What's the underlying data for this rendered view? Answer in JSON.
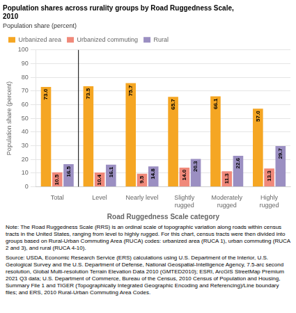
{
  "chart_data": {
    "type": "bar",
    "title": [
      "Population shares across rurality groups by Road Ruggedness Scale,",
      "2010"
    ],
    "ylabel": "Population share (percent)",
    "xlabel": "Road Ruggedness Scale category",
    "categories": [
      "Total",
      "Level",
      "Nearly level",
      "Slightly\nrugged",
      "Moderately\nrugged",
      "Highly\nrugged"
    ],
    "series": [
      {
        "name": "Urbanized area",
        "color": "#F5A623",
        "values": [
          73.0,
          73.5,
          75.7,
          65.7,
          66.1,
          57.0
        ],
        "value_labels": [
          "73.0",
          "73.5",
          "75.7",
          "65.7",
          "66.1",
          "57.0"
        ]
      },
      {
        "name": "Urbanized commuting",
        "color": "#F0897A",
        "values": [
          10.5,
          10.4,
          9.5,
          14.0,
          11.3,
          13.3
        ],
        "value_labels": [
          "10.5",
          "10.4",
          "9.5",
          "14.0",
          "11.3",
          "13.3"
        ]
      },
      {
        "name": "Rural",
        "color": "#9B8FC2",
        "values": [
          16.5,
          16.1,
          14.8,
          20.3,
          22.6,
          29.7
        ],
        "value_labels": [
          "16.5",
          "16.1",
          "14.8",
          "20.3",
          "22.6",
          "29.7"
        ]
      }
    ],
    "ylim": [
      0,
      100
    ],
    "yticks": [
      0,
      10,
      20,
      30,
      40,
      50,
      60,
      70,
      80,
      90,
      100
    ],
    "grid": true,
    "legend": "upper left",
    "data_labels": true,
    "annotations": [
      "Note: The Road Ruggedness Scale (RRS) is an ordinal scale of topographic variation along roads within census tracts in the United States, ranging from level to highly rugged. For this chart, census tracts were then divided into groups based on Rural-Urban Commuting Area (RUCA) codes: urbanized area (RUCA 1), urban commuting (RUCA 2 and 3), and rural (RUCA 4-10).",
      "Source: USDA, Economic Research Service (ERS) calculations using U.S. Department of the Interior, U.S. Geological Survey and the U.S. Department of Defense, National Geospatial-Intelligence Agency, 7.5-arc second resolution, Global Multi-resolution Terrain Elevation Data 2010 (GMTED2010); ESRI, ArcGIS StreetMap Premium 2021 Q3 data; U.S. Department of Commerce, Bureau of the Census, 2010 Census of Population and Housing, Summary File 1 and TIGER (Topographically Integrated Geographic Encoding and Referencing)/Line boundary files; and ERS, 2010 Rural-Urban Commuting Area Codes."
    ]
  }
}
